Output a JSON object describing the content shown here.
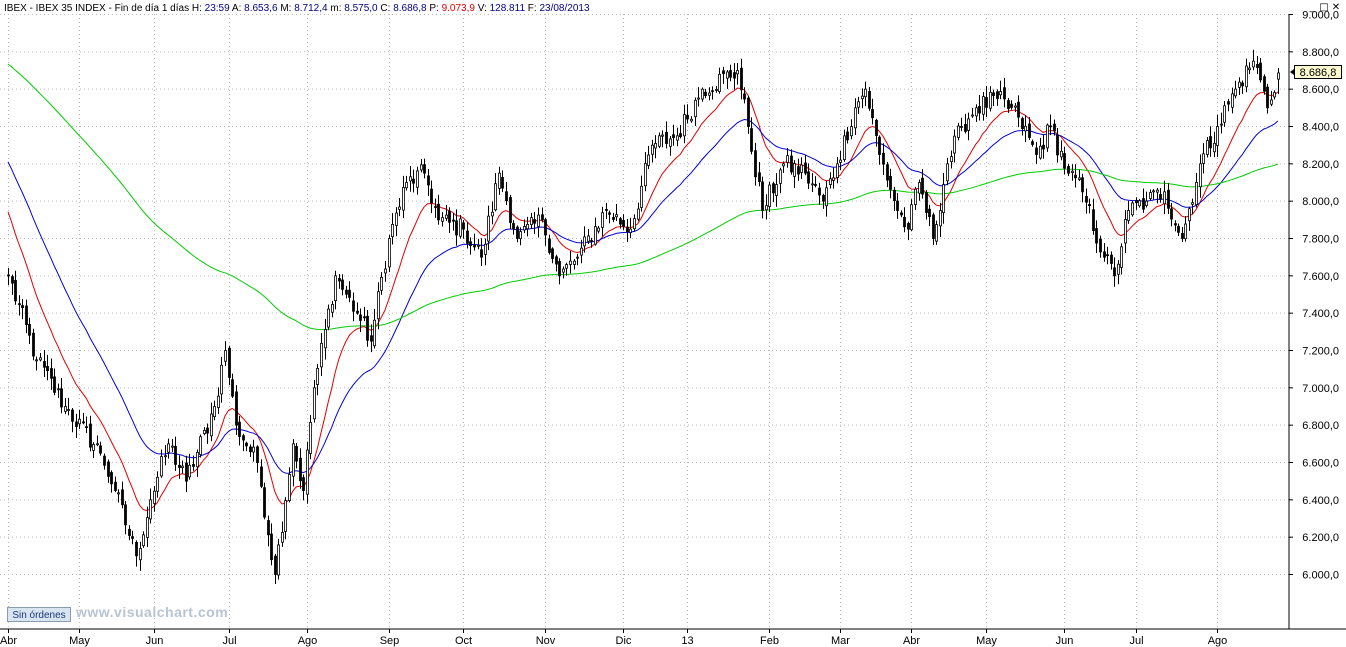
{
  "header": {
    "symbol": "IBEX - IBEX 35 INDEX - Fin de día 1 días",
    "fields": [
      {
        "label": "H:",
        "value": "23:59",
        "color": "#00008b"
      },
      {
        "label": "A:",
        "value": "8.653,6",
        "color": "#00008b"
      },
      {
        "label": "M:",
        "value": "8.712,4",
        "color": "#00008b"
      },
      {
        "label": "m:",
        "value": "8.575,0",
        "color": "#00008b"
      },
      {
        "label": "C:",
        "value": "8.686,8",
        "color": "#00008b"
      },
      {
        "label": "P:",
        "value": "9.073,9",
        "color": "#e00000"
      },
      {
        "label": "V:",
        "value": "128.811",
        "color": "#00008b"
      },
      {
        "label": "F:",
        "value": "23/08/2013",
        "color": "#00008b"
      }
    ]
  },
  "window_controls": {
    "minimize": "_",
    "maximize": "□",
    "close": "✕"
  },
  "last_price": "8.686,8",
  "orders_button": "Sin órdenes",
  "watermark": "www.visualchart.com",
  "colors": {
    "candle": "#000000",
    "ma_fast": "#e00000",
    "ma_mid": "#0000dd",
    "ma_slow": "#00cc00",
    "grid": "#bbbbbb",
    "background": "#ffffff"
  },
  "chart_data": {
    "type": "candlestick",
    "title": "IBEX 35 INDEX",
    "ylim": [
      5800,
      9000
    ],
    "grid": true,
    "y_ticks": [
      {
        "value": 9000,
        "label": "9.000,0"
      },
      {
        "value": 8800,
        "label": "8.800,0"
      },
      {
        "value": 8600,
        "label": "8.600,0"
      },
      {
        "value": 8400,
        "label": "8.400,0"
      },
      {
        "value": 8200,
        "label": "8.200,0"
      },
      {
        "value": 8000,
        "label": "8.000,0"
      },
      {
        "value": 7800,
        "label": "7.800,0"
      },
      {
        "value": 7600,
        "label": "7.600,0"
      },
      {
        "value": 7400,
        "label": "7.400,0"
      },
      {
        "value": 7200,
        "label": "7.200,0"
      },
      {
        "value": 7000,
        "label": "7.000,0"
      },
      {
        "value": 6800,
        "label": "6.800,0"
      },
      {
        "value": 6600,
        "label": "6.600,0"
      },
      {
        "value": 6400,
        "label": "6.400,0"
      },
      {
        "value": 6200,
        "label": "6.200,0"
      },
      {
        "value": 6000,
        "label": "6.000,0"
      }
    ],
    "x_labels": [
      {
        "label": "Abr",
        "index": 0
      },
      {
        "label": "May",
        "index": 20
      },
      {
        "label": "Jun",
        "index": 41
      },
      {
        "label": "Jul",
        "index": 62
      },
      {
        "label": "Ago",
        "index": 84
      },
      {
        "label": "Sep",
        "index": 107
      },
      {
        "label": "Oct",
        "index": 128
      },
      {
        "label": "Nov",
        "index": 151
      },
      {
        "label": "Dic",
        "index": 173
      },
      {
        "label": "13",
        "index": 191
      },
      {
        "label": "Feb",
        "index": 214
      },
      {
        "label": "Mar",
        "index": 234
      },
      {
        "label": "Abr",
        "index": 254
      },
      {
        "label": "May",
        "index": 275
      },
      {
        "label": "Jun",
        "index": 297
      },
      {
        "label": "Jul",
        "index": 317
      },
      {
        "label": "Ago",
        "index": 340
      }
    ],
    "anchors": [
      {
        "i": 0,
        "c": 7600
      },
      {
        "i": 8,
        "c": 7150
      },
      {
        "i": 16,
        "c": 6900
      },
      {
        "i": 26,
        "c": 6650
      },
      {
        "i": 30,
        "c": 6450
      },
      {
        "i": 36,
        "c": 6100
      },
      {
        "i": 40,
        "c": 6400
      },
      {
        "i": 45,
        "c": 6700
      },
      {
        "i": 50,
        "c": 6500
      },
      {
        "i": 58,
        "c": 6900
      },
      {
        "i": 61,
        "c": 7200
      },
      {
        "i": 64,
        "c": 6800
      },
      {
        "i": 70,
        "c": 6600
      },
      {
        "i": 75,
        "c": 6000
      },
      {
        "i": 80,
        "c": 6700
      },
      {
        "i": 83,
        "c": 6450
      },
      {
        "i": 86,
        "c": 7000
      },
      {
        "i": 92,
        "c": 7600
      },
      {
        "i": 98,
        "c": 7400
      },
      {
        "i": 102,
        "c": 7250
      },
      {
        "i": 107,
        "c": 7800
      },
      {
        "i": 112,
        "c": 8100
      },
      {
        "i": 117,
        "c": 8150
      },
      {
        "i": 121,
        "c": 7900
      },
      {
        "i": 128,
        "c": 7850
      },
      {
        "i": 133,
        "c": 7700
      },
      {
        "i": 138,
        "c": 8150
      },
      {
        "i": 143,
        "c": 7800
      },
      {
        "i": 150,
        "c": 7900
      },
      {
        "i": 155,
        "c": 7600
      },
      {
        "i": 160,
        "c": 7700
      },
      {
        "i": 168,
        "c": 7950
      },
      {
        "i": 175,
        "c": 7850
      },
      {
        "i": 181,
        "c": 8300
      },
      {
        "i": 188,
        "c": 8350
      },
      {
        "i": 195,
        "c": 8600
      },
      {
        "i": 205,
        "c": 8700
      },
      {
        "i": 208,
        "c": 8400
      },
      {
        "i": 212,
        "c": 7950
      },
      {
        "i": 218,
        "c": 8200
      },
      {
        "i": 224,
        "c": 8150
      },
      {
        "i": 229,
        "c": 8000
      },
      {
        "i": 233,
        "c": 8200
      },
      {
        "i": 238,
        "c": 8500
      },
      {
        "i": 241,
        "c": 8600
      },
      {
        "i": 245,
        "c": 8250
      },
      {
        "i": 250,
        "c": 7950
      },
      {
        "i": 253,
        "c": 7850
      },
      {
        "i": 256,
        "c": 8100
      },
      {
        "i": 260,
        "c": 7800
      },
      {
        "i": 264,
        "c": 8200
      },
      {
        "i": 268,
        "c": 8400
      },
      {
        "i": 272,
        "c": 8500
      },
      {
        "i": 278,
        "c": 8550
      },
      {
        "i": 284,
        "c": 8450
      },
      {
        "i": 289,
        "c": 8250
      },
      {
        "i": 293,
        "c": 8400
      },
      {
        "i": 298,
        "c": 8150
      },
      {
        "i": 302,
        "c": 8050
      },
      {
        "i": 308,
        "c": 7700
      },
      {
        "i": 311,
        "c": 7600
      },
      {
        "i": 315,
        "c": 7950
      },
      {
        "i": 320,
        "c": 8000
      },
      {
        "i": 325,
        "c": 8050
      },
      {
        "i": 330,
        "c": 7800
      },
      {
        "i": 335,
        "c": 8200
      },
      {
        "i": 340,
        "c": 8400
      },
      {
        "i": 345,
        "c": 8600
      },
      {
        "i": 350,
        "c": 8750
      },
      {
        "i": 352,
        "c": 8650
      },
      {
        "i": 354,
        "c": 8500
      },
      {
        "i": 357,
        "c": 8686.8
      }
    ],
    "last_bar": {
      "open": 8653.6,
      "high": 8712.4,
      "low": 8575.0,
      "close": 8686.8,
      "date": "23/08/2013"
    },
    "moving_averages": [
      {
        "color": "#e00000",
        "start": [
          8000,
          8050
        ]
      },
      {
        "color": "#0000dd",
        "start": [
          8250,
          8270
        ]
      },
      {
        "color": "#00cc00",
        "start": [
          8750,
          8760
        ]
      }
    ]
  }
}
